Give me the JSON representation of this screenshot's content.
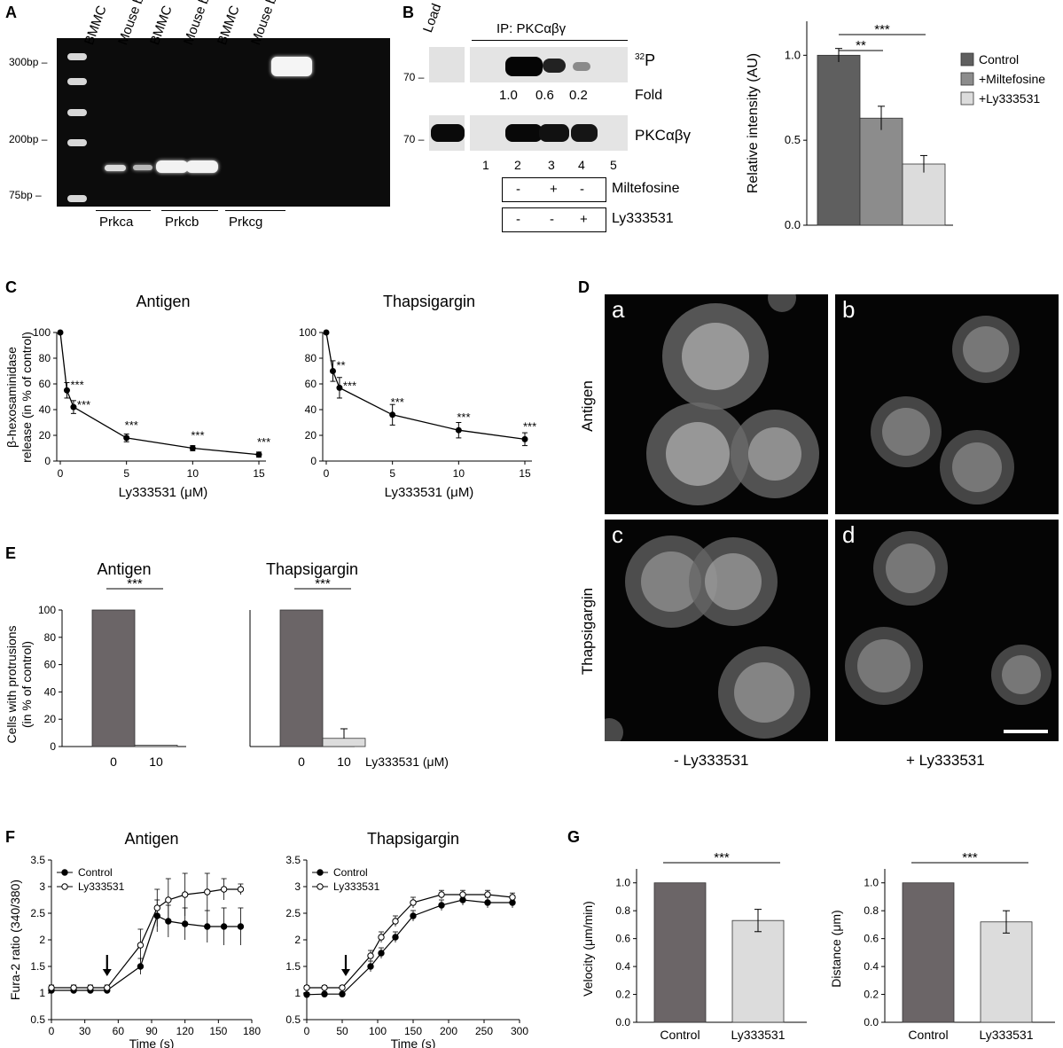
{
  "panel_letters": {
    "A": "A",
    "B": "B",
    "C": "C",
    "D": "D",
    "E": "E",
    "F": "F",
    "G": "G"
  },
  "panelA": {
    "lanes": [
      "BMMC",
      "Mouse brain",
      "BMMC",
      "Mouse brain",
      "BMMC",
      "Mouse brain"
    ],
    "markers": [
      "300bp",
      "200bp",
      "75bp"
    ],
    "genes": [
      "Prkca",
      "Prkcb",
      "Prkcg"
    ],
    "band_colors": {
      "bg": "#0c0c0c",
      "band": "#f2f2f2"
    }
  },
  "panelB": {
    "load_label": "Load",
    "ip_label": "IP: PKCαβγ",
    "mw_top": "70",
    "mw_bottom": "70",
    "blot_top_label_sup": "32",
    "blot_top_label": "P",
    "fold_values": [
      "1.0",
      "0.6",
      "0.2"
    ],
    "fold_label": "Fold",
    "blot_bottom_label": "PKCαβγ",
    "lane_numbers": [
      "1",
      "2",
      "3",
      "4",
      "5"
    ],
    "treatment1": {
      "signs": [
        "-",
        "+",
        "-"
      ],
      "label": "Miltefosine"
    },
    "treatment2": {
      "signs": [
        "-",
        "-",
        "+"
      ],
      "label": "Ly333531"
    }
  },
  "chart_data": [
    {
      "id": "B-bar",
      "type": "bar",
      "categories": [
        "Control",
        "+Miltefosine",
        "+Ly333531"
      ],
      "values": [
        1.0,
        0.63,
        0.36
      ],
      "errors": [
        0.04,
        0.07,
        0.05
      ],
      "colors": [
        "#5f5f5f",
        "#8c8c8c",
        "#dcdcdc"
      ],
      "ylabel": "Relative intensity (AU)",
      "ylim": [
        0,
        1.2
      ],
      "yticks": [
        "0.0",
        "0.5",
        "1.0"
      ],
      "legend": [
        "Control",
        "+Miltefosine",
        "+Ly333531"
      ],
      "significance": [
        "**",
        "***"
      ]
    },
    {
      "id": "C-antigen",
      "type": "line",
      "title": "Antigen",
      "x": [
        0,
        0.5,
        1,
        5,
        10,
        15
      ],
      "y": [
        100,
        55,
        42,
        18,
        10,
        5
      ],
      "errors": [
        0,
        6,
        5,
        3,
        2,
        2
      ],
      "stars": [
        "",
        "***",
        "***",
        "***",
        "***",
        "***"
      ],
      "xlabel": "Ly333531 (μM)",
      "ylabel_line1": "β-hexosaminidase",
      "ylabel_line2": "release (in % of control)",
      "xlim": [
        0,
        15
      ],
      "ylim": [
        0,
        100
      ],
      "xticks": [
        "0",
        "5",
        "10",
        "15"
      ],
      "yticks": [
        "0",
        "20",
        "40",
        "60",
        "80",
        "100"
      ]
    },
    {
      "id": "C-thapsigargin",
      "type": "line",
      "title": "Thapsigargin",
      "x": [
        0,
        0.5,
        1,
        5,
        10,
        15
      ],
      "y": [
        100,
        70,
        57,
        36,
        24,
        17
      ],
      "errors": [
        0,
        8,
        8,
        8,
        6,
        5
      ],
      "stars": [
        "",
        "**",
        "***",
        "***",
        "***",
        "***"
      ],
      "xlabel": "Ly333531 (μM)",
      "xlim": [
        0,
        15
      ],
      "ylim": [
        0,
        100
      ],
      "xticks": [
        "0",
        "5",
        "10",
        "15"
      ],
      "yticks": [
        "0",
        "20",
        "40",
        "60",
        "80",
        "100"
      ]
    },
    {
      "id": "E",
      "type": "bar",
      "groups": [
        {
          "title": "Antigen",
          "categories": [
            "0",
            "10"
          ],
          "values": [
            100,
            1
          ],
          "errors": [
            0,
            0
          ],
          "significance": "***"
        },
        {
          "title": "Thapsigargin",
          "categories": [
            "0",
            "10"
          ],
          "values": [
            100,
            6
          ],
          "errors": [
            0,
            7
          ],
          "significance": "***"
        }
      ],
      "colors": [
        "#6b6567",
        "#dcdcdc"
      ],
      "ylabel_line1": "Cells with protrusions",
      "ylabel_line2": "(in % of control)",
      "xlabel": "Ly333531 (μM)",
      "ylim": [
        0,
        100
      ],
      "yticks": [
        "0",
        "20",
        "40",
        "60",
        "80",
        "100"
      ]
    },
    {
      "id": "F-antigen",
      "type": "line",
      "title": "Antigen",
      "series": [
        {
          "name": "Control",
          "x": [
            0,
            20,
            35,
            50,
            80,
            95,
            105,
            120,
            140,
            155,
            170
          ],
          "y": [
            1.05,
            1.05,
            1.05,
            1.05,
            1.5,
            2.45,
            2.35,
            2.3,
            2.25,
            2.25,
            2.25
          ],
          "errors": [
            0.05,
            0.05,
            0.05,
            0.05,
            0.15,
            0.3,
            0.3,
            0.3,
            0.3,
            0.35,
            0.35
          ],
          "marker": "filled"
        },
        {
          "name": "Ly333531",
          "x": [
            0,
            20,
            35,
            50,
            80,
            95,
            105,
            120,
            140,
            155,
            170
          ],
          "y": [
            1.1,
            1.1,
            1.1,
            1.1,
            1.9,
            2.6,
            2.75,
            2.85,
            2.9,
            2.95,
            2.95
          ],
          "errors": [
            0.05,
            0.05,
            0.05,
            0.05,
            0.3,
            0.35,
            0.4,
            0.4,
            0.35,
            0.2,
            0.1
          ],
          "marker": "open"
        }
      ],
      "arrow_x": 50,
      "xlabel": "Time (s)",
      "ylabel": "Fura-2 ratio (340/380)",
      "xlim": [
        0,
        180
      ],
      "ylim": [
        0.5,
        3.5
      ],
      "xticks": [
        "0",
        "30",
        "60",
        "90",
        "120",
        "150",
        "180"
      ],
      "yticks": [
        "0.5",
        "1",
        "1.5",
        "2",
        "2.5",
        "3",
        "3.5"
      ]
    },
    {
      "id": "F-thapsigargin",
      "type": "line",
      "title": "Thapsigargin",
      "series": [
        {
          "name": "Control",
          "x": [
            0,
            25,
            50,
            90,
            105,
            125,
            150,
            190,
            220,
            255,
            290
          ],
          "y": [
            0.97,
            0.98,
            0.98,
            1.5,
            1.75,
            2.05,
            2.45,
            2.65,
            2.75,
            2.7,
            2.7
          ],
          "errors": [
            0.04,
            0.04,
            0.04,
            0.1,
            0.1,
            0.1,
            0.1,
            0.1,
            0.1,
            0.1,
            0.1
          ],
          "marker": "filled"
        },
        {
          "name": "Ly333531",
          "x": [
            0,
            25,
            50,
            90,
            105,
            125,
            150,
            190,
            220,
            255,
            290
          ],
          "y": [
            1.1,
            1.1,
            1.1,
            1.7,
            2.05,
            2.35,
            2.7,
            2.85,
            2.85,
            2.85,
            2.8
          ],
          "errors": [
            0.04,
            0.04,
            0.04,
            0.1,
            0.1,
            0.1,
            0.1,
            0.08,
            0.08,
            0.08,
            0.08
          ],
          "marker": "open"
        }
      ],
      "arrow_x": 55,
      "xlabel": "Time (s)",
      "xlim": [
        0,
        300
      ],
      "ylim": [
        0.5,
        3.5
      ],
      "xticks": [
        "0",
        "50",
        "100",
        "150",
        "200",
        "250",
        "300"
      ],
      "yticks": [
        "0.5",
        "1",
        "1.5",
        "2",
        "2.5",
        "3",
        "3.5"
      ]
    },
    {
      "id": "G-velocity",
      "type": "bar",
      "categories": [
        "Control",
        "Ly333531"
      ],
      "values": [
        1.0,
        0.73
      ],
      "errors": [
        0,
        0.08
      ],
      "colors": [
        "#6b6567",
        "#dcdcdc"
      ],
      "ylabel": "Velocity (μm/min)",
      "ylim": [
        0,
        1.1
      ],
      "yticks": [
        "0.0",
        "0.2",
        "0.4",
        "0.6",
        "0.8",
        "1.0"
      ],
      "significance": "***"
    },
    {
      "id": "G-distance",
      "type": "bar",
      "categories": [
        "Control",
        "Ly333531"
      ],
      "values": [
        1.0,
        0.72
      ],
      "errors": [
        0,
        0.08
      ],
      "colors": [
        "#6b6567",
        "#dcdcdc"
      ],
      "ylabel": "Distance (μm)",
      "ylim": [
        0,
        1.1
      ],
      "yticks": [
        "0.0",
        "0.2",
        "0.4",
        "0.6",
        "0.8",
        "1.0"
      ],
      "significance": "***"
    }
  ],
  "panelD": {
    "row_labels": [
      "Antigen",
      "Thapsigargin"
    ],
    "sub_labels": [
      "a",
      "b",
      "c",
      "d"
    ],
    "col_labels": [
      "- Ly333531",
      "+ Ly333531"
    ]
  }
}
